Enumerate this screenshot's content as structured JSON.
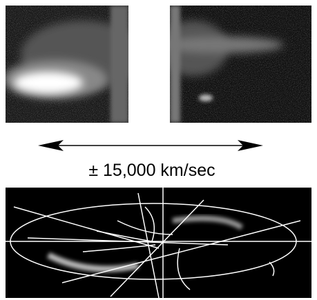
{
  "scale_label": "± 15,000 km/sec"
}
